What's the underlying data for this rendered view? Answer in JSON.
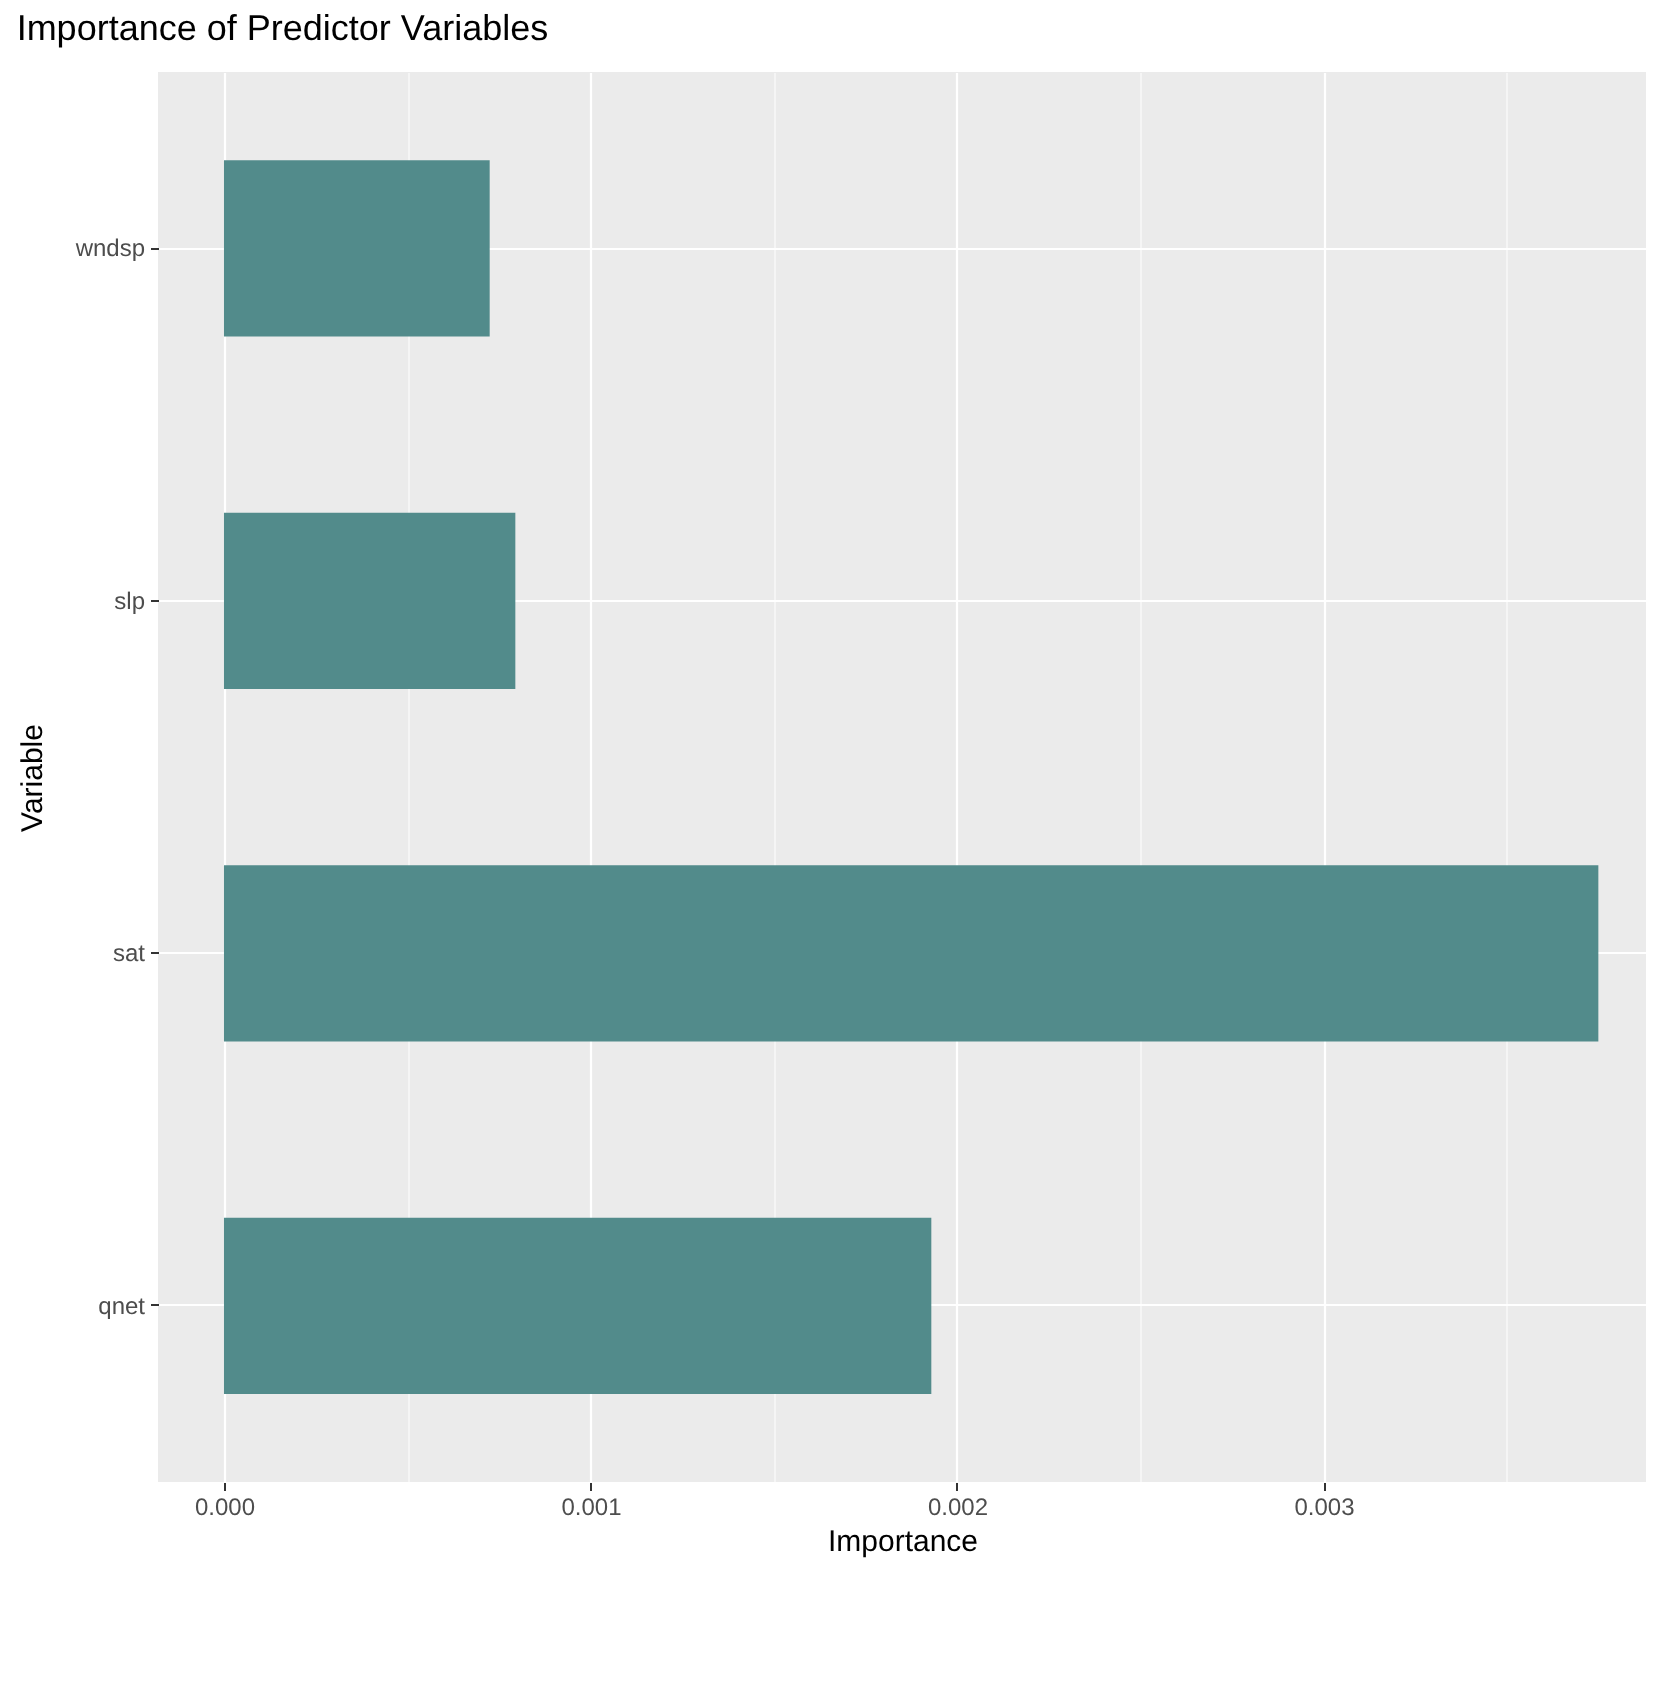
{
  "chart_data": {
    "type": "bar",
    "orientation": "horizontal",
    "title": "Importance of Predictor Variables",
    "xlabel": "Importance",
    "ylabel": "Variable",
    "categories": [
      "wndsp",
      "slp",
      "sat",
      "qnet"
    ],
    "values": [
      0.000725,
      0.000795,
      0.00375,
      0.00193
    ],
    "color": "#528b8b",
    "xlim": [
      -0.00018,
      0.00388
    ],
    "xticks": [
      {
        "value": 0,
        "label": "0.000"
      },
      {
        "value": 0.0005,
        "label": null
      },
      {
        "value": 0.001,
        "label": "0.001"
      },
      {
        "value": 0.0015,
        "label": null
      },
      {
        "value": 0.002,
        "label": "0.002"
      },
      {
        "value": 0.0025,
        "label": null
      },
      {
        "value": 0.003,
        "label": "0.003"
      },
      {
        "value": 0.0035,
        "label": null
      }
    ],
    "grid": true
  }
}
